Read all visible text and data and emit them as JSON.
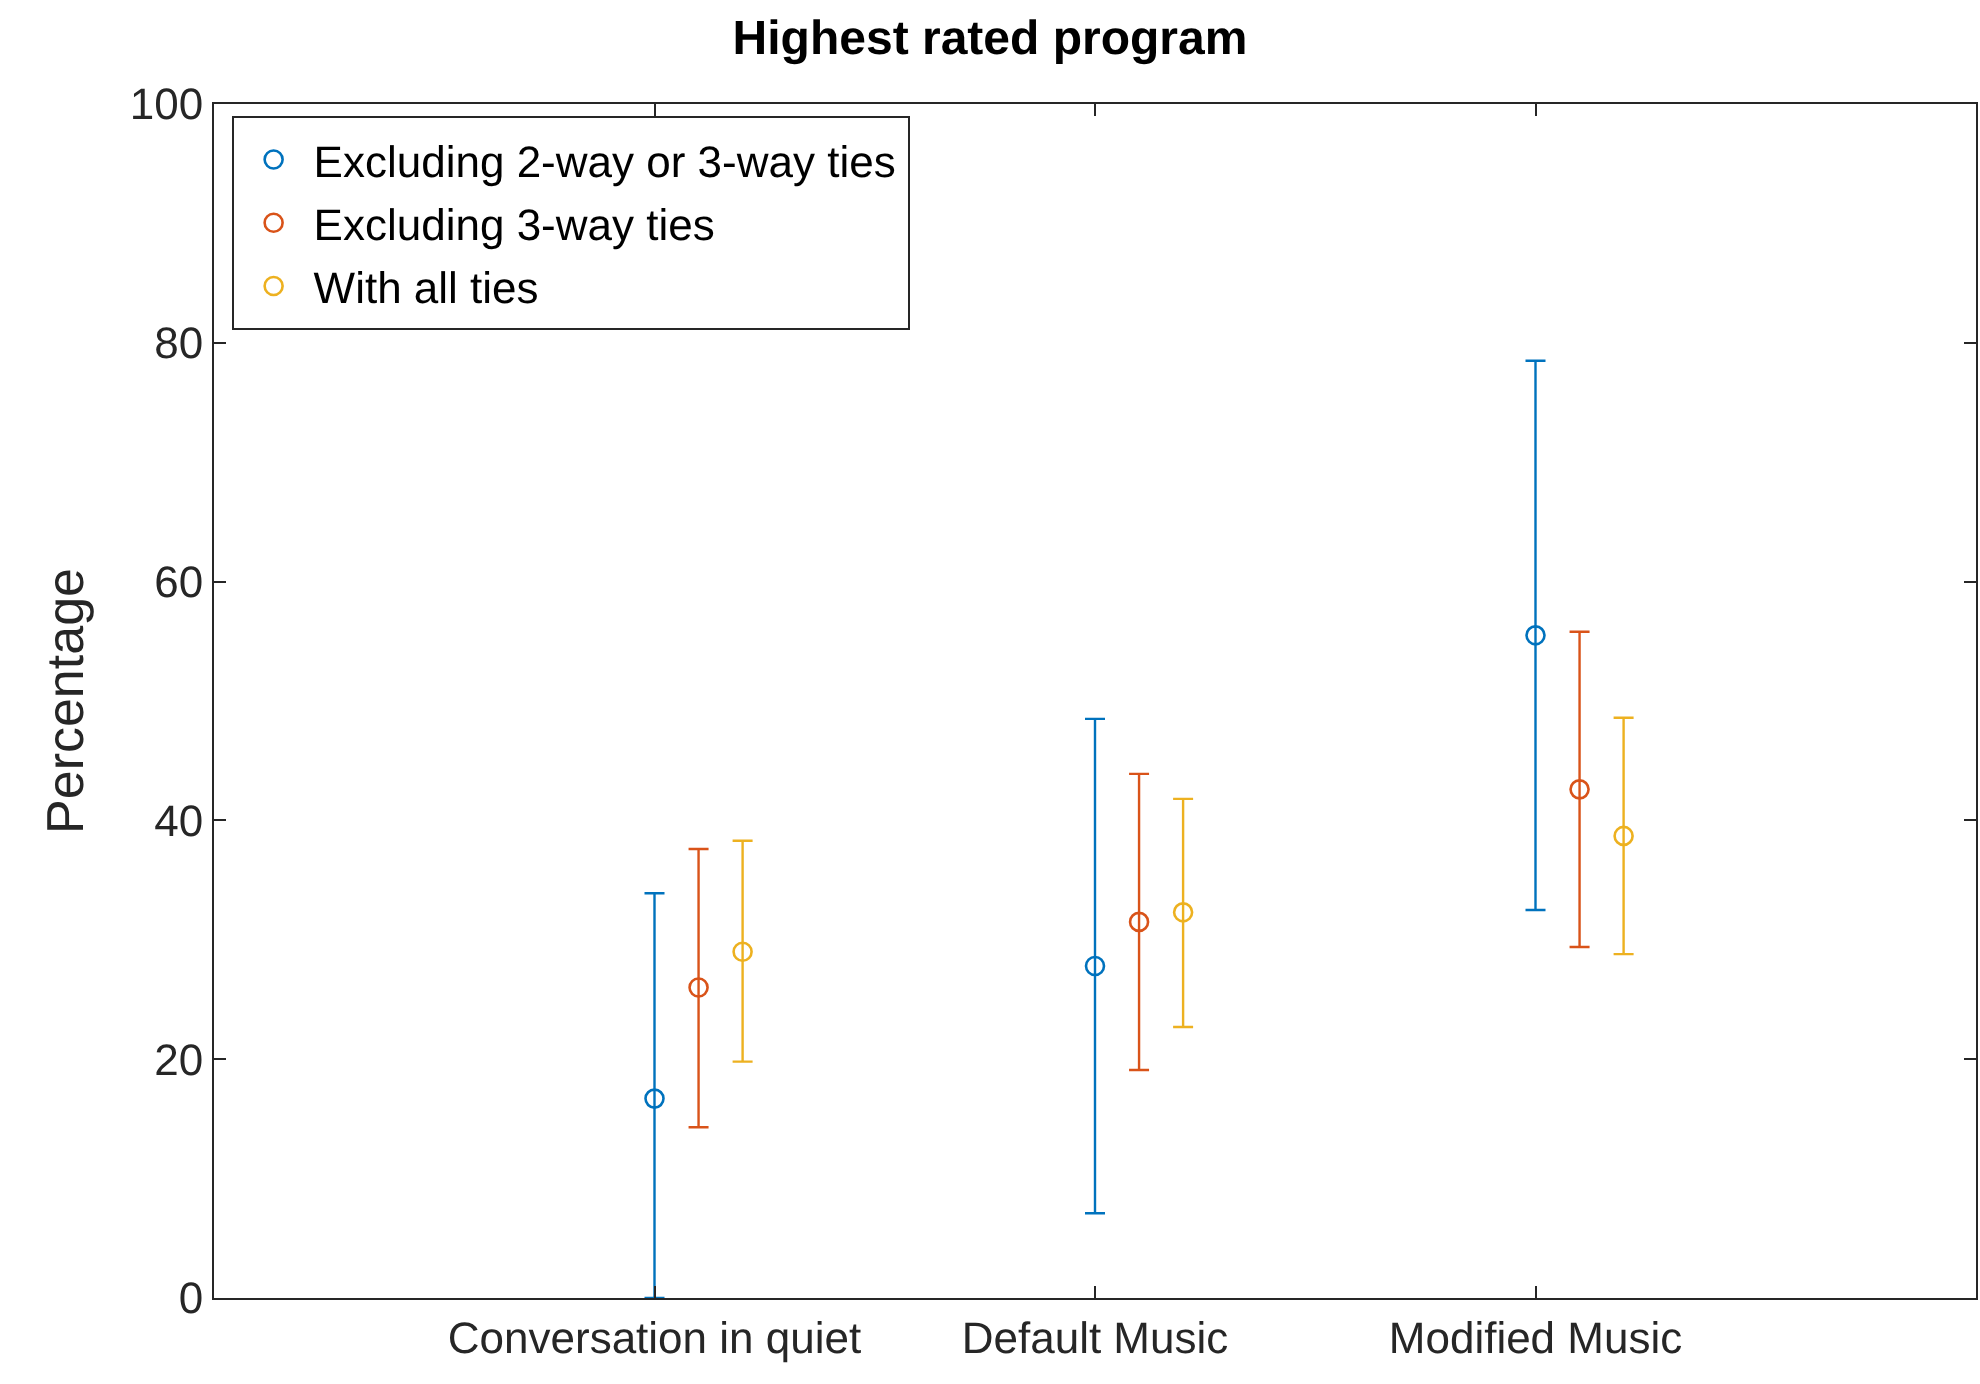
{
  "chart_data": {
    "type": "scatter",
    "title": "Highest rated program",
    "ylabel": "Percentage",
    "categories": [
      "Conversation in quiet",
      "Default Music",
      "Modified Music"
    ],
    "ylim": [
      0,
      100
    ],
    "yticks": [
      0,
      20,
      40,
      60,
      80,
      100
    ],
    "legend": "top left",
    "marker": "circle",
    "series": [
      {
        "name": "Excluding 2-way or 3-way ties",
        "color": "#0072bd",
        "values": [
          16.7,
          27.8,
          55.5
        ],
        "errors": [
          [
            0,
            33.9
          ],
          [
            7.1,
            48.5
          ],
          [
            32.5,
            78.5
          ]
        ]
      },
      {
        "name": "Excluding 3-way ties",
        "color": "#d95319",
        "values": [
          26,
          31.5,
          42.6
        ],
        "errors": [
          [
            14.3,
            37.6
          ],
          [
            19.1,
            43.9
          ],
          [
            29.4,
            55.8
          ]
        ]
      },
      {
        "name": "With all ties",
        "color": "#edb120",
        "values": [
          29,
          32.3,
          38.7
        ],
        "errors": [
          [
            19.8,
            38.3
          ],
          [
            22.7,
            41.8
          ],
          [
            28.8,
            48.6
          ]
        ]
      }
    ]
  }
}
